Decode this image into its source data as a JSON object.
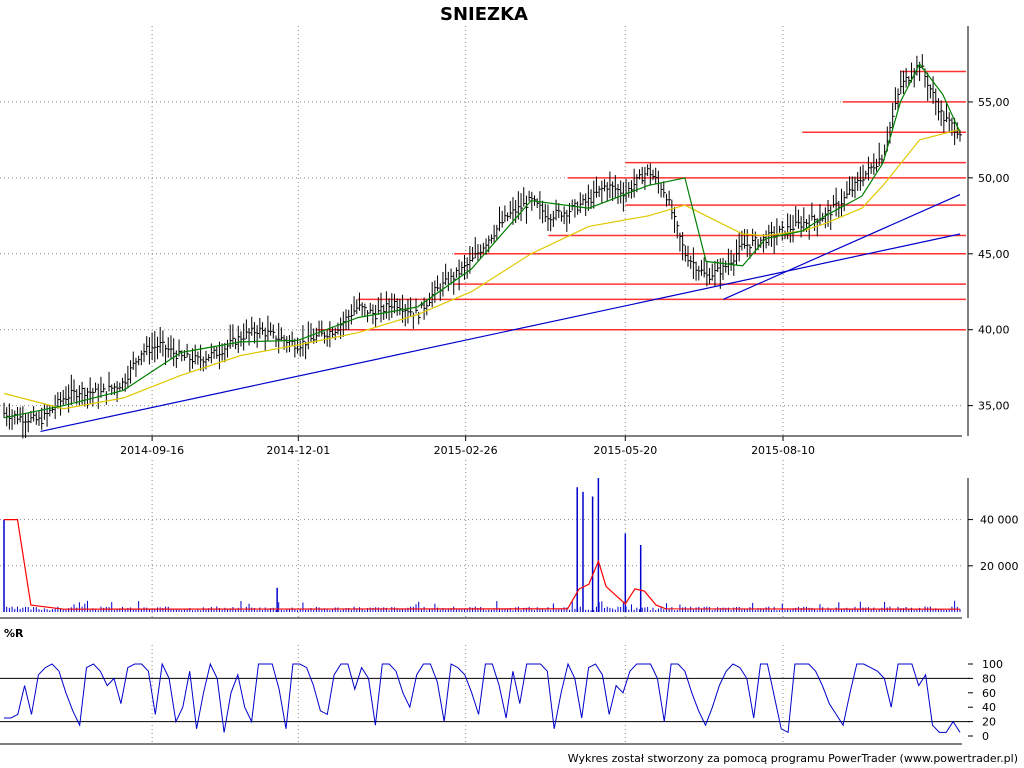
{
  "title": "SNIEZKA",
  "footer": "Wykres został stworzony za pomocą programu PowerTrader (www.powertrader.pl)",
  "colors": {
    "candle": "#000000",
    "ma_short": "#008000",
    "ma_long": "#e0c800",
    "trendline": "#0000cc",
    "resistance": "#ff3030",
    "volume_bar": "#0000cc",
    "volume_avg": "#ff0000",
    "wr_line": "#0000cc"
  },
  "chart_data": [
    {
      "type": "line",
      "panel": "price",
      "title": "SNIEZKA",
      "x_axis_type": "date",
      "x_ticks": [
        "2014-09-16",
        "2014-12-01",
        "2015-02-26",
        "2015-05-20",
        "2015-08-10"
      ],
      "x_range": [
        "2014-07-01",
        "2015-11-10"
      ],
      "y_ticks": [
        "35,00",
        "40,00",
        "45,00",
        "50,00",
        "55,00"
      ],
      "ylim": [
        33,
        60
      ],
      "grid": true,
      "series": [
        {
          "kind": "ohlc_approx_close",
          "x": [
            "2014-07-01",
            "2014-07-10",
            "2014-07-20",
            "2014-08-01",
            "2014-08-10",
            "2014-08-20",
            "2014-09-01",
            "2014-09-10",
            "2014-09-20",
            "2014-10-01",
            "2014-10-10",
            "2014-10-20",
            "2014-11-01",
            "2014-11-10",
            "2014-11-20",
            "2014-12-01",
            "2014-12-10",
            "2014-12-20",
            "2015-01-01",
            "2015-01-10",
            "2015-01-20",
            "2015-02-01",
            "2015-02-10",
            "2015-02-20",
            "2015-03-01",
            "2015-03-10",
            "2015-03-20",
            "2015-04-01",
            "2015-04-10",
            "2015-04-20",
            "2015-05-01",
            "2015-05-10",
            "2015-05-20",
            "2015-06-01",
            "2015-06-10",
            "2015-06-20",
            "2015-07-01",
            "2015-07-10",
            "2015-07-20",
            "2015-08-01",
            "2015-08-10",
            "2015-08-20",
            "2015-09-01",
            "2015-09-10",
            "2015-09-20",
            "2015-10-01",
            "2015-10-10",
            "2015-10-20",
            "2015-11-01",
            "2015-11-10"
          ],
          "values": [
            34.5,
            34.2,
            34.0,
            35.5,
            36.0,
            35.8,
            36.5,
            38.5,
            39.0,
            38.2,
            38.0,
            38.5,
            39.5,
            40.0,
            39.5,
            39.0,
            39.5,
            40.0,
            41.5,
            41.0,
            41.8,
            41.0,
            42.5,
            43.5,
            44.5,
            46.0,
            47.5,
            48.5,
            47.5,
            47.8,
            48.5,
            49.5,
            49.0,
            50.5,
            49.0,
            45.0,
            43.5,
            44.0,
            45.5,
            46.0,
            46.5,
            47.0,
            47.5,
            48.5,
            50.0,
            51.5,
            56.0,
            57.5,
            54.0,
            53.0
          ]
        },
        {
          "name": "",
          "kind": "moving_average_short",
          "x": [
            "2014-07-01",
            "2014-08-01",
            "2014-09-01",
            "2014-10-01",
            "2014-11-01",
            "2014-12-01",
            "2015-01-01",
            "2015-02-01",
            "2015-03-01",
            "2015-04-01",
            "2015-05-01",
            "2015-06-01",
            "2015-06-20",
            "2015-07-01",
            "2015-07-20",
            "2015-08-01",
            "2015-08-20",
            "2015-09-01",
            "2015-09-20",
            "2015-10-01",
            "2015-10-10",
            "2015-10-20",
            "2015-11-01",
            "2015-11-10"
          ],
          "values": [
            34.2,
            35.0,
            36.0,
            38.5,
            39.2,
            39.3,
            40.8,
            41.5,
            44.0,
            48.5,
            48.0,
            49.5,
            50.0,
            44.5,
            44.2,
            46.0,
            46.5,
            47.5,
            48.8,
            51.0,
            55.0,
            57.5,
            55.5,
            53.0
          ]
        },
        {
          "name": "",
          "kind": "moving_average_long",
          "x": [
            "2014-07-01",
            "2014-08-01",
            "2014-09-01",
            "2014-10-01",
            "2014-11-01",
            "2014-12-01",
            "2015-01-01",
            "2015-02-01",
            "2015-03-01",
            "2015-04-01",
            "2015-05-01",
            "2015-06-01",
            "2015-06-20",
            "2015-07-01",
            "2015-07-20",
            "2015-08-01",
            "2015-08-20",
            "2015-09-01",
            "2015-09-20",
            "2015-10-01",
            "2015-10-20",
            "2015-11-10"
          ],
          "values": [
            35.8,
            34.8,
            35.5,
            37.0,
            38.3,
            39.0,
            39.8,
            41.0,
            42.5,
            45.0,
            46.8,
            47.5,
            48.2,
            47.5,
            46.3,
            46.2,
            46.5,
            47.0,
            48.0,
            49.5,
            52.5,
            53.2
          ]
        },
        {
          "name": "",
          "kind": "trendline",
          "x": [
            "2014-07-20",
            "2015-11-10"
          ],
          "values": [
            33.3,
            46.3
          ]
        },
        {
          "name": "",
          "kind": "trendline",
          "x": [
            "2015-07-10",
            "2015-11-10"
          ],
          "values": [
            42.0,
            48.9
          ]
        }
      ],
      "horizontal_levels": [
        {
          "value": 40.0,
          "from": "2014-12-10"
        },
        {
          "value": 42.0,
          "from": "2015-01-01"
        },
        {
          "value": 43.0,
          "from": "2015-02-20"
        },
        {
          "value": 45.0,
          "from": "2015-02-20"
        },
        {
          "value": 46.2,
          "from": "2015-04-10"
        },
        {
          "value": 48.2,
          "from": "2015-05-20"
        },
        {
          "value": 50.0,
          "from": "2015-04-20"
        },
        {
          "value": 51.0,
          "from": "2015-05-20"
        },
        {
          "value": 53.0,
          "from": "2015-08-20"
        },
        {
          "value": 55.0,
          "from": "2015-09-10"
        },
        {
          "value": 57.0,
          "from": "2015-10-10"
        }
      ]
    },
    {
      "type": "bar",
      "panel": "volume",
      "y_ticks": [
        "20 000",
        "40 000"
      ],
      "ylim": [
        0,
        58000
      ],
      "grid": true,
      "spikes": [
        {
          "x": "2014-07-01",
          "value": 40000
        },
        {
          "x": "2014-11-20",
          "value": 10500
        },
        {
          "x": "2015-04-25",
          "value": 54000
        },
        {
          "x": "2015-04-28",
          "value": 52000
        },
        {
          "x": "2015-05-03",
          "value": 50000
        },
        {
          "x": "2015-05-06",
          "value": 58000
        },
        {
          "x": "2015-05-20",
          "value": 34000
        },
        {
          "x": "2015-05-28",
          "value": 29000
        }
      ],
      "baseline_value": 1200,
      "average_line": {
        "x": [
          "2014-07-01",
          "2014-07-08",
          "2014-07-15",
          "2014-08-01",
          "2015-04-20",
          "2015-04-26",
          "2015-05-01",
          "2015-05-06",
          "2015-05-10",
          "2015-05-20",
          "2015-05-25",
          "2015-05-30",
          "2015-06-05",
          "2015-06-10",
          "2015-11-10"
        ],
        "values": [
          40000,
          40000,
          3000,
          1200,
          1400,
          10000,
          12000,
          22000,
          11000,
          3500,
          10000,
          9000,
          3000,
          1400,
          1200
        ]
      }
    },
    {
      "type": "line",
      "panel": "williams_r",
      "title": "%R",
      "y_ticks": [
        "0",
        "20",
        "40",
        "60",
        "80",
        "100"
      ],
      "ylim": [
        0,
        100
      ],
      "reference_lines": [
        20,
        80
      ],
      "series": [
        {
          "name": "",
          "x_index_range": [
            0,
            140
          ],
          "values": [
            25,
            25,
            30,
            70,
            30,
            85,
            95,
            100,
            90,
            60,
            35,
            15,
            95,
            100,
            90,
            70,
            80,
            45,
            95,
            100,
            100,
            90,
            30,
            100,
            80,
            20,
            40,
            90,
            10,
            60,
            100,
            80,
            5,
            60,
            85,
            40,
            20,
            100,
            100,
            100,
            65,
            10,
            100,
            100,
            95,
            70,
            35,
            30,
            85,
            100,
            100,
            65,
            95,
            80,
            15,
            100,
            100,
            90,
            60,
            40,
            85,
            100,
            100,
            75,
            20,
            100,
            95,
            85,
            60,
            30,
            100,
            100,
            70,
            25,
            90,
            45,
            100,
            100,
            100,
            90,
            10,
            60,
            100,
            80,
            25,
            95,
            100,
            85,
            30,
            70,
            60,
            90,
            100,
            100,
            100,
            80,
            20,
            100,
            100,
            90,
            60,
            35,
            15,
            40,
            70,
            90,
            100,
            95,
            80,
            25,
            100,
            100,
            55,
            10,
            5,
            100,
            100,
            100,
            90,
            70,
            45,
            30,
            15,
            60,
            100,
            100,
            95,
            90,
            80,
            40,
            100,
            100,
            100,
            70,
            85,
            15,
            5,
            5,
            20,
            5
          ]
        }
      ]
    }
  ]
}
